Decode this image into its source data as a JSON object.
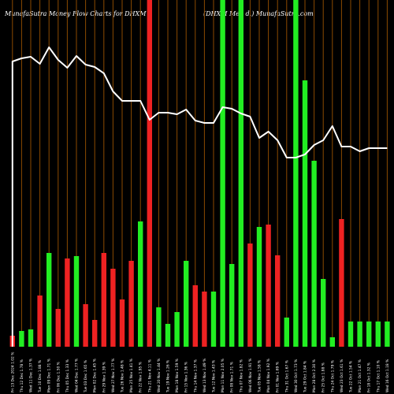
{
  "header": {
    "title_left": "MunafaSutra  Money Flow  Charts for DHXM",
    "title_right": "(DHXM  Med      d.) MunafaSutra.com"
  },
  "colors": {
    "background": "#000000",
    "grid": "#8b4a00",
    "up": "#22ee22",
    "down": "#ee2222",
    "line": "#ffffff"
  },
  "chart_data": {
    "type": "bar",
    "ylim": [
      0,
      440
    ],
    "price_range": [
      0,
      440
    ],
    "categories": [
      "Fri 13 Dec 2024 1.02 %",
      "Thu 12 Dec 1.78 %",
      "Wed 11 Dec 1.37 %",
      "Tue 10 Dec 1.88 %",
      "Mon 09 Dec 1.71 %",
      "Fri 06 Dec 1.50 %",
      "Thu 05 Dec 1.33 %",
      "Wed 04 Dec 1.77 %",
      "Tue 03 Dec 1.65 %",
      "Mon 02 Dec 1.45 %",
      "Fri 29 Nov 1.39 %",
      "Wed 27 Nov 1.77 %",
      "Tue 26 Nov 1.48 %",
      "Mon 25 Nov 1.41 %",
      "Fri 22 Nov 1.95 %",
      "Thu 21 Nov 4.11 %",
      "Wed 20 Nov 1.44 %",
      "Tue 19 Nov 1.26 %",
      "Mon 18 Nov 1.59 %",
      "Fri 15 Nov 1.36 %",
      "Thu 14 Nov 1.37 %",
      "Wed 13 Nov 1.49 %",
      "Tue 12 Nov 1.43 %",
      "Mon 11 Nov 2.05 %",
      "Fri 08 Nov 1.71 %",
      "Thu 07 Nov 1.82 %",
      "Wed 06 Nov 1.91 %",
      "Tue 05 Nov 1.58 %",
      "Mon 04 Nov 1.92 %",
      "Fri 01 Nov 1.69 %",
      "Thu 31 Oct 1.67 %",
      "Wed 30 Oct 1.73 %",
      "Tue 29 Oct 1.84 %",
      "Mon 28 Oct 2.30 %",
      "Fri 25 Oct 1.88 %",
      "Thu 24 Oct 1.79 %",
      "Wed 23 Oct 1.61 %",
      "Tue 22 Oct 1.54 %",
      "Mon 21 Oct 1.47 %",
      "Fri 18 Oct 1.32 %",
      "Thu 17 Oct 1.10 %",
      "Wed 16 Oct 1.18 %"
    ],
    "values": [
      14,
      20,
      22,
      65,
      119,
      48,
      112,
      115,
      54,
      34,
      119,
      99,
      60,
      109,
      159,
      440,
      50,
      29,
      44,
      109,
      78,
      70,
      70,
      440,
      105,
      440,
      131,
      152,
      155,
      116,
      37,
      440,
      338,
      236,
      86,
      12,
      162,
      32,
      32,
      32,
      32,
      32
    ],
    "direction": [
      "down",
      "up",
      "up",
      "down",
      "up",
      "down",
      "down",
      "up",
      "down",
      "down",
      "down",
      "down",
      "down",
      "down",
      "up",
      "down",
      "up",
      "up",
      "up",
      "up",
      "down",
      "down",
      "up",
      "up",
      "up",
      "up",
      "down",
      "up",
      "down",
      "down",
      "up",
      "up",
      "up",
      "up",
      "up",
      "up",
      "down",
      "up",
      "up",
      "up",
      "up",
      "up"
    ],
    "price": [
      362,
      366,
      368,
      359,
      380,
      364,
      354,
      369,
      358,
      355,
      347,
      324,
      312,
      312,
      312,
      288,
      297,
      297,
      295,
      301,
      287,
      284,
      284,
      304,
      302,
      296,
      292,
      265,
      273,
      262,
      240,
      240,
      244,
      256,
      262,
      280,
      254,
      254,
      248,
      252,
      252,
      252
    ]
  }
}
